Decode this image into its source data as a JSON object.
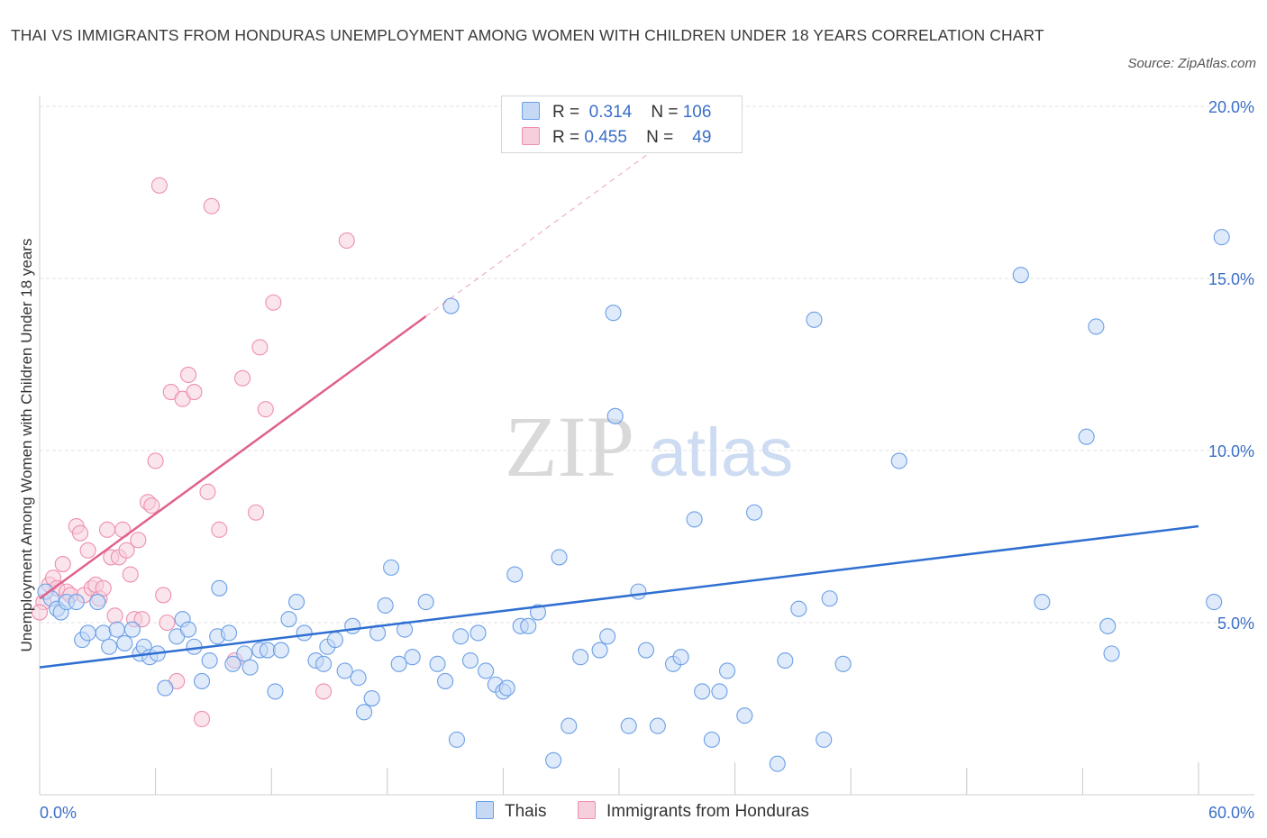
{
  "title": "THAI VS IMMIGRANTS FROM HONDURAS UNEMPLOYMENT AMONG WOMEN WITH CHILDREN UNDER 18 YEARS CORRELATION CHART",
  "source": "Source: ZipAtlas.com",
  "watermark": {
    "zip": "ZIP",
    "atlas": "atlas"
  },
  "colors": {
    "thais": "#6b9fe6",
    "thais_fill": "#c5d9f5",
    "honduras": "#ee8fae",
    "honduras_fill": "#f7cfdc",
    "thais_line": "#2f6fd1",
    "honduras_line": "#e0628c",
    "axis_label": "#3a6fc8"
  },
  "legend": {
    "row1": {
      "r_label": "R =",
      "r_value": "0.314",
      "n_label": "N =",
      "n_value": "106"
    },
    "row2": {
      "r_label": "R =",
      "r_value": "0.455",
      "n_label": "N =",
      "n_value": "49"
    }
  },
  "bottom_legend": {
    "thais": "Thais",
    "honduras": "Immigrants from Honduras"
  },
  "chart_data": {
    "type": "scatter",
    "xlabel": "",
    "ylabel": "Unemployment Among Women with Children Under 18 years",
    "xlim": [
      0,
      60
    ],
    "ylim": [
      0,
      20
    ],
    "x_tick_labels": {
      "min": "0.0%",
      "max": "60.0%"
    },
    "y_tick_labels": [
      "5.0%",
      "10.0%",
      "15.0%",
      "20.0%"
    ],
    "y_ticks": [
      5,
      10,
      15,
      20
    ],
    "grid": true,
    "series": [
      {
        "name": "Thais",
        "points": [
          [
            0.3,
            5.9
          ],
          [
            0.6,
            5.7
          ],
          [
            0.9,
            5.4
          ],
          [
            1.1,
            5.3
          ],
          [
            1.4,
            5.6
          ],
          [
            1.9,
            5.6
          ],
          [
            2.2,
            4.5
          ],
          [
            2.5,
            4.7
          ],
          [
            3.0,
            5.6
          ],
          [
            3.3,
            4.7
          ],
          [
            3.6,
            4.3
          ],
          [
            4.0,
            4.8
          ],
          [
            4.4,
            4.4
          ],
          [
            4.8,
            4.8
          ],
          [
            5.2,
            4.1
          ],
          [
            5.4,
            4.3
          ],
          [
            5.7,
            4.0
          ],
          [
            6.1,
            4.1
          ],
          [
            6.5,
            3.1
          ],
          [
            7.1,
            4.6
          ],
          [
            7.4,
            5.1
          ],
          [
            7.7,
            4.8
          ],
          [
            8.0,
            4.3
          ],
          [
            8.4,
            3.3
          ],
          [
            8.8,
            3.9
          ],
          [
            9.2,
            4.6
          ],
          [
            9.3,
            6.0
          ],
          [
            9.8,
            4.7
          ],
          [
            10.0,
            3.8
          ],
          [
            10.6,
            4.1
          ],
          [
            10.9,
            3.7
          ],
          [
            11.4,
            4.2
          ],
          [
            11.8,
            4.2
          ],
          [
            12.2,
            3.0
          ],
          [
            12.5,
            4.2
          ],
          [
            12.9,
            5.1
          ],
          [
            13.3,
            5.6
          ],
          [
            13.7,
            4.7
          ],
          [
            14.3,
            3.9
          ],
          [
            14.7,
            3.8
          ],
          [
            14.9,
            4.3
          ],
          [
            15.3,
            4.5
          ],
          [
            15.8,
            3.6
          ],
          [
            16.2,
            4.9
          ],
          [
            16.5,
            3.4
          ],
          [
            16.8,
            2.4
          ],
          [
            17.2,
            2.8
          ],
          [
            17.5,
            4.7
          ],
          [
            17.9,
            5.5
          ],
          [
            18.2,
            6.6
          ],
          [
            18.6,
            3.8
          ],
          [
            18.9,
            4.8
          ],
          [
            19.3,
            4.0
          ],
          [
            20.0,
            5.6
          ],
          [
            20.6,
            3.8
          ],
          [
            21.0,
            3.3
          ],
          [
            21.3,
            14.2
          ],
          [
            21.6,
            1.6
          ],
          [
            21.8,
            4.6
          ],
          [
            22.3,
            3.9
          ],
          [
            22.7,
            4.7
          ],
          [
            23.1,
            3.6
          ],
          [
            23.6,
            3.2
          ],
          [
            24.0,
            3.0
          ],
          [
            24.2,
            3.1
          ],
          [
            24.6,
            6.4
          ],
          [
            24.9,
            4.9
          ],
          [
            25.3,
            4.9
          ],
          [
            25.8,
            5.3
          ],
          [
            26.6,
            1.0
          ],
          [
            26.9,
            6.9
          ],
          [
            27.4,
            2.0
          ],
          [
            28.0,
            4.0
          ],
          [
            29.0,
            4.2
          ],
          [
            29.4,
            4.6
          ],
          [
            29.7,
            14.0
          ],
          [
            29.8,
            11.0
          ],
          [
            30.5,
            2.0
          ],
          [
            31.0,
            5.9
          ],
          [
            31.4,
            4.2
          ],
          [
            32.0,
            2.0
          ],
          [
            32.8,
            3.8
          ],
          [
            33.2,
            4.0
          ],
          [
            33.9,
            8.0
          ],
          [
            34.3,
            3.0
          ],
          [
            34.8,
            1.6
          ],
          [
            35.2,
            3.0
          ],
          [
            35.6,
            3.6
          ],
          [
            36.5,
            2.3
          ],
          [
            37.0,
            8.2
          ],
          [
            38.2,
            0.9
          ],
          [
            38.6,
            3.9
          ],
          [
            39.3,
            5.4
          ],
          [
            40.1,
            13.8
          ],
          [
            40.6,
            1.6
          ],
          [
            40.9,
            5.7
          ],
          [
            41.6,
            3.8
          ],
          [
            44.5,
            9.7
          ],
          [
            50.8,
            15.1
          ],
          [
            51.9,
            5.6
          ],
          [
            54.2,
            10.4
          ],
          [
            54.7,
            13.6
          ],
          [
            55.3,
            4.9
          ],
          [
            55.5,
            4.1
          ],
          [
            60.8,
            5.6
          ],
          [
            61.2,
            16.2
          ]
        ],
        "trend": {
          "x": [
            0,
            60
          ],
          "y": [
            3.7,
            7.8
          ]
        }
      },
      {
        "name": "Immigrants from Honduras",
        "points": [
          [
            0.2,
            5.6
          ],
          [
            0.5,
            6.1
          ],
          [
            0.7,
            6.3
          ],
          [
            0.9,
            6.0
          ],
          [
            1.2,
            6.7
          ],
          [
            1.4,
            5.9
          ],
          [
            1.6,
            5.8
          ],
          [
            1.9,
            7.8
          ],
          [
            2.1,
            7.6
          ],
          [
            2.3,
            5.8
          ],
          [
            2.5,
            7.1
          ],
          [
            2.7,
            6.0
          ],
          [
            2.9,
            6.1
          ],
          [
            3.1,
            5.7
          ],
          [
            3.3,
            6.0
          ],
          [
            3.5,
            7.7
          ],
          [
            3.7,
            6.9
          ],
          [
            3.9,
            5.2
          ],
          [
            4.1,
            6.9
          ],
          [
            4.3,
            7.7
          ],
          [
            4.5,
            7.1
          ],
          [
            4.7,
            6.4
          ],
          [
            4.9,
            5.1
          ],
          [
            5.1,
            7.4
          ],
          [
            5.3,
            5.1
          ],
          [
            5.6,
            8.5
          ],
          [
            5.8,
            8.4
          ],
          [
            6.0,
            9.7
          ],
          [
            6.2,
            17.7
          ],
          [
            6.4,
            5.8
          ],
          [
            6.6,
            5.0
          ],
          [
            6.8,
            11.7
          ],
          [
            7.1,
            3.3
          ],
          [
            7.4,
            11.5
          ],
          [
            7.7,
            12.2
          ],
          [
            8.0,
            11.7
          ],
          [
            8.4,
            2.2
          ],
          [
            8.7,
            8.8
          ],
          [
            8.9,
            17.1
          ],
          [
            9.3,
            7.7
          ],
          [
            10.1,
            3.9
          ],
          [
            10.5,
            12.1
          ],
          [
            11.4,
            13.0
          ],
          [
            11.2,
            8.2
          ],
          [
            11.7,
            11.2
          ],
          [
            12.1,
            14.3
          ],
          [
            14.7,
            3.0
          ],
          [
            15.9,
            16.1
          ],
          [
            0.0,
            5.3
          ]
        ],
        "trend": {
          "x": [
            0,
            20
          ],
          "y": [
            5.7,
            13.9
          ]
        },
        "trend_extension": {
          "x": [
            20,
            40
          ],
          "y": [
            13.9,
            22.1
          ]
        }
      }
    ]
  }
}
